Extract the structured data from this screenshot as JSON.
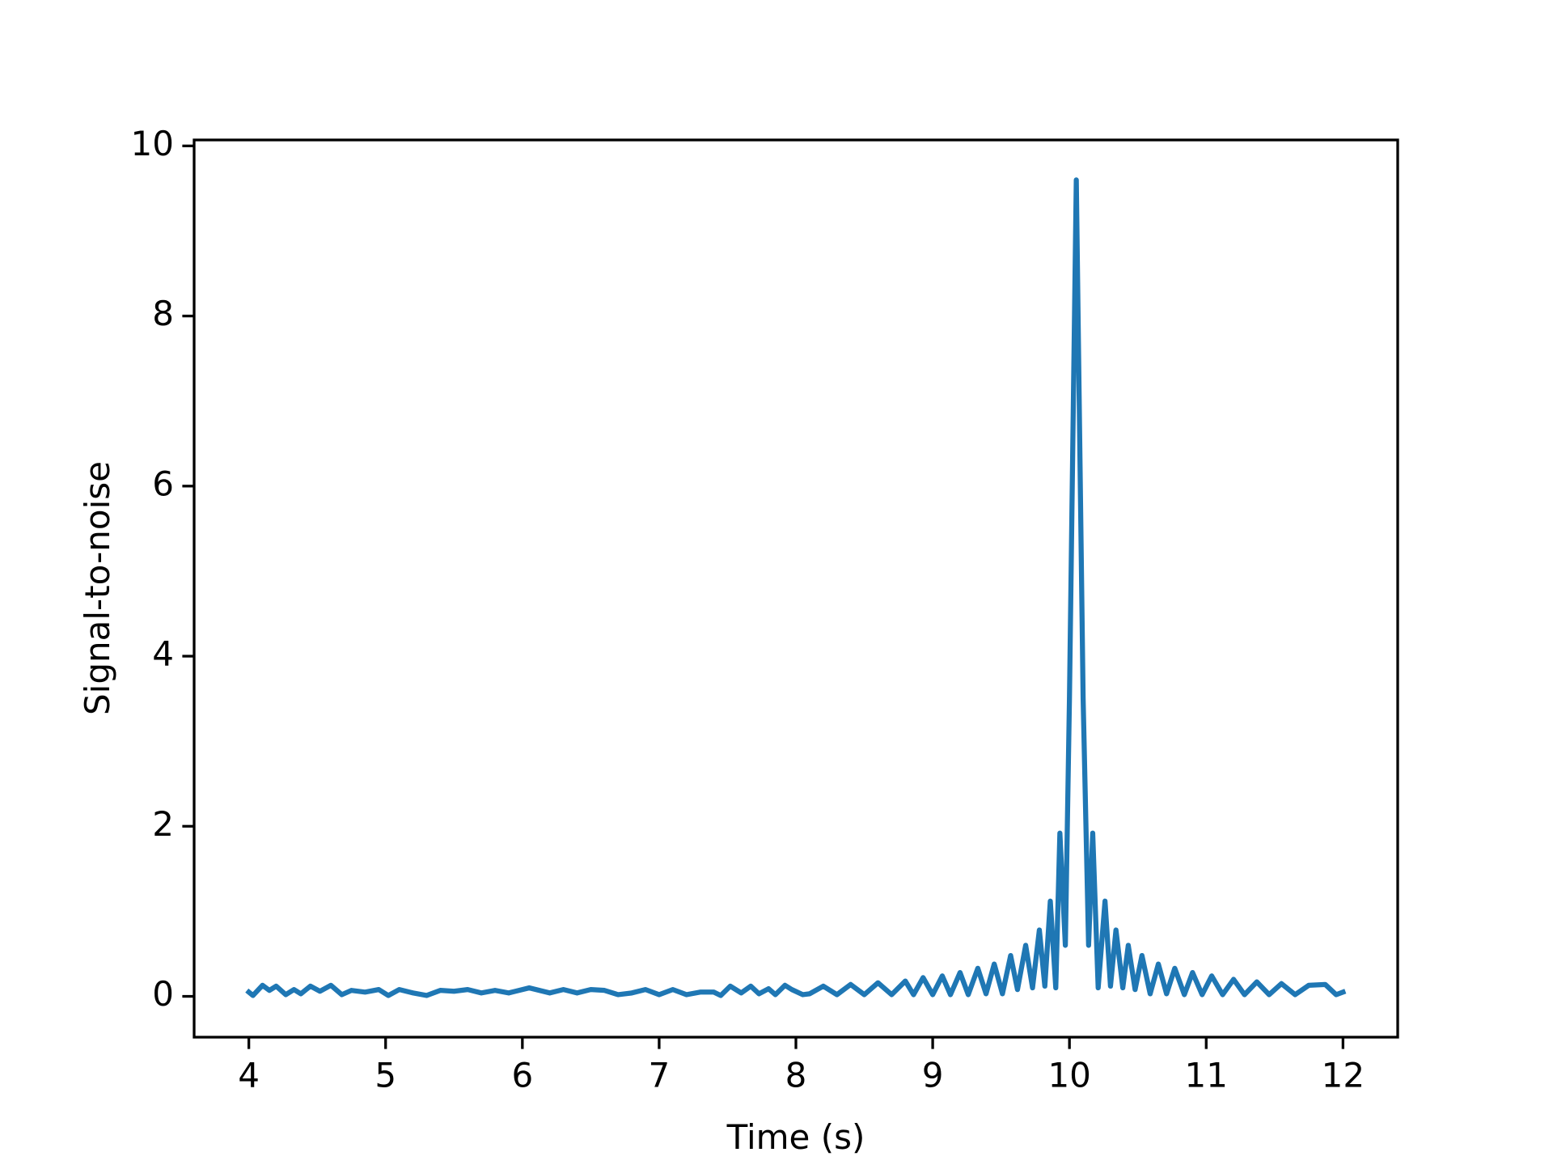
{
  "chart_data": {
    "type": "line",
    "xlabel": "Time (s)",
    "ylabel": "Signal-to-noise",
    "color": "#1f77b4",
    "grid": false,
    "x": [
      4.0,
      4.03,
      4.1,
      4.15,
      4.2,
      4.27,
      4.33,
      4.38,
      4.45,
      4.52,
      4.6,
      4.68,
      4.75,
      4.85,
      4.95,
      5.02,
      5.1,
      5.2,
      5.3,
      5.4,
      5.5,
      5.6,
      5.7,
      5.8,
      5.9,
      6.05,
      6.2,
      6.3,
      6.4,
      6.5,
      6.6,
      6.7,
      6.8,
      6.9,
      7.0,
      7.1,
      7.2,
      7.3,
      7.4,
      7.45,
      7.52,
      7.6,
      7.67,
      7.73,
      7.8,
      7.85,
      7.92,
      7.97,
      8.05,
      8.1,
      8.2,
      8.3,
      8.4,
      8.5,
      8.6,
      8.7,
      8.8,
      8.86,
      8.93,
      9.0,
      9.07,
      9.13,
      9.2,
      9.26,
      9.33,
      9.39,
      9.45,
      9.51,
      9.57,
      9.62,
      9.68,
      9.73,
      9.78,
      9.82,
      9.86,
      9.9,
      9.93,
      9.97,
      10.0,
      10.05,
      10.1,
      10.14,
      10.17,
      10.21,
      10.26,
      10.3,
      10.34,
      10.39,
      10.43,
      10.48,
      10.53,
      10.59,
      10.65,
      10.71,
      10.77,
      10.84,
      10.9,
      10.97,
      11.04,
      11.12,
      11.2,
      11.28,
      11.37,
      11.46,
      11.55,
      11.65,
      11.75,
      11.87,
      11.95,
      12.0
    ],
    "values": [
      0.05,
      0.01,
      0.13,
      0.07,
      0.12,
      0.02,
      0.08,
      0.03,
      0.12,
      0.06,
      0.13,
      0.02,
      0.07,
      0.05,
      0.08,
      0.01,
      0.08,
      0.04,
      0.01,
      0.07,
      0.06,
      0.08,
      0.04,
      0.07,
      0.04,
      0.1,
      0.04,
      0.08,
      0.04,
      0.08,
      0.07,
      0.02,
      0.04,
      0.08,
      0.02,
      0.08,
      0.02,
      0.05,
      0.05,
      0.01,
      0.12,
      0.04,
      0.12,
      0.03,
      0.09,
      0.02,
      0.13,
      0.08,
      0.02,
      0.03,
      0.12,
      0.02,
      0.14,
      0.02,
      0.16,
      0.02,
      0.18,
      0.02,
      0.22,
      0.02,
      0.24,
      0.02,
      0.28,
      0.02,
      0.33,
      0.03,
      0.38,
      0.03,
      0.48,
      0.08,
      0.6,
      0.1,
      0.78,
      0.12,
      1.12,
      0.1,
      1.92,
      0.6,
      3.5,
      9.6,
      3.5,
      0.6,
      1.92,
      0.1,
      1.12,
      0.12,
      0.78,
      0.1,
      0.6,
      0.08,
      0.48,
      0.03,
      0.38,
      0.03,
      0.33,
      0.02,
      0.28,
      0.02,
      0.24,
      0.02,
      0.2,
      0.02,
      0.17,
      0.02,
      0.15,
      0.02,
      0.13,
      0.14,
      0.02,
      0.05
    ],
    "xlim": [
      3.6,
      12.4
    ],
    "xticks": [
      4,
      5,
      6,
      7,
      8,
      9,
      10,
      11,
      12
    ],
    "ylim": [
      -0.48,
      10.07
    ],
    "yticks": [
      0,
      2,
      4,
      6,
      8,
      10
    ]
  }
}
